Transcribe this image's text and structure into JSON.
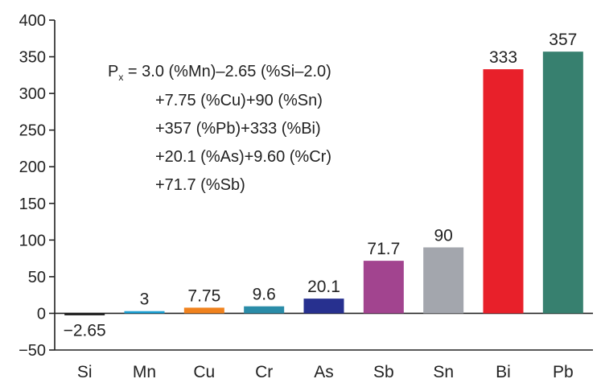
{
  "chart_data": {
    "type": "bar",
    "title": "",
    "xlabel": "",
    "ylabel": "",
    "ylim": [
      -50,
      400
    ],
    "yticks": [
      -50,
      0,
      50,
      100,
      150,
      200,
      250,
      300,
      350,
      400
    ],
    "ytick_labels": [
      "−50",
      "0",
      "50",
      "100",
      "150",
      "200",
      "250",
      "300",
      "350",
      "400"
    ],
    "categories": [
      "Si",
      "Mn",
      "Cu",
      "Cr",
      "As",
      "Sb",
      "Sn",
      "Bi",
      "Pb"
    ],
    "values": [
      -2.65,
      3,
      7.75,
      9.6,
      20.1,
      71.7,
      90,
      333,
      357
    ],
    "data_labels": [
      "−2.65",
      "3",
      "7.75",
      "9.6",
      "20.1",
      "71.7",
      "90",
      "333",
      "357"
    ],
    "colors": [
      "#1a1a1a",
      "#1b9fd3",
      "#f0821e",
      "#2a8ca8",
      "#27308f",
      "#a2448f",
      "#a3a6ad",
      "#e8202a",
      "#37806f"
    ],
    "grid": false,
    "annotation": {
      "lead": "P",
      "subscript": "x",
      "lines": [
        " = 3.0 (%Mn)–2.65 (%Si–2.0)",
        "+7.75 (%Cu)+90 (%Sn)",
        "+357 (%Pb)+333 (%Bi)",
        "+20.1 (%As)+9.60 (%Cr)",
        "+71.7 (%Sb)"
      ]
    }
  }
}
